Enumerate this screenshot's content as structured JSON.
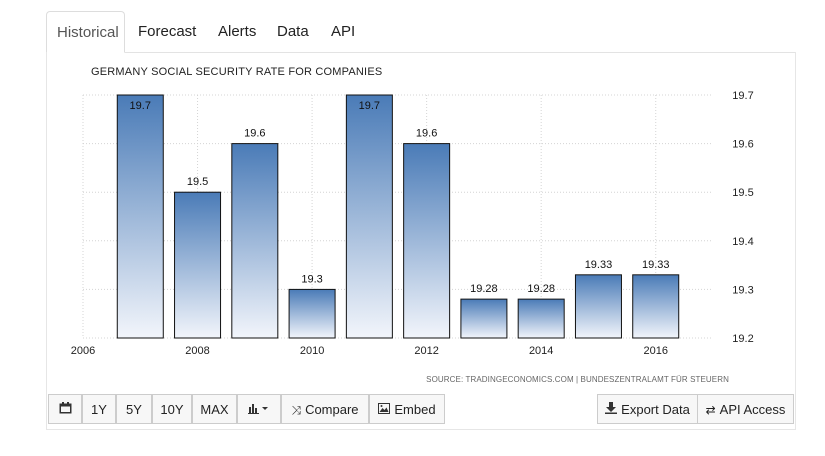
{
  "tabs": [
    "Historical",
    "Forecast",
    "Alerts",
    "Data",
    "API"
  ],
  "active_tab": "Historical",
  "chart_data": {
    "type": "bar",
    "title": "GERMANY SOCIAL SECURITY RATE FOR COMPANIES",
    "categories": [
      "2007",
      "2008",
      "2009",
      "2010",
      "2011",
      "2012",
      "2013",
      "2014",
      "2015",
      "2016"
    ],
    "values": [
      19.7,
      19.5,
      19.6,
      19.3,
      19.7,
      19.6,
      19.28,
      19.28,
      19.33,
      19.33
    ],
    "data_labels": [
      "19.7",
      "19.5",
      "19.6",
      "19.3",
      "19.7",
      "19.6",
      "19.28",
      "19.28",
      "19.33",
      "19.33"
    ],
    "x_tick_labels": [
      "2006",
      "2008",
      "2010",
      "2012",
      "2014",
      "2016"
    ],
    "y_tick_labels": [
      "19.2",
      "19.3",
      "19.4",
      "19.5",
      "19.6",
      "19.7"
    ],
    "ylim": [
      19.2,
      19.7
    ],
    "y_axis_side": "right",
    "grid": true,
    "bar_color_top": "#4a7bb7",
    "bar_color_bottom": "#f2f5fb",
    "source": "SOURCE: TRADINGECONOMICS.COM | BUNDESZENTRALAMT FÜR STEUERN"
  },
  "toolbar": {
    "calendar_icon": "calendar-icon",
    "range_buttons": [
      "1Y",
      "5Y",
      "10Y",
      "MAX"
    ],
    "chart_type_icon": "bar-chart-icon",
    "compare_label": "Compare",
    "embed_label": "Embed",
    "export_label": "Export Data",
    "api_label": "API Access"
  }
}
